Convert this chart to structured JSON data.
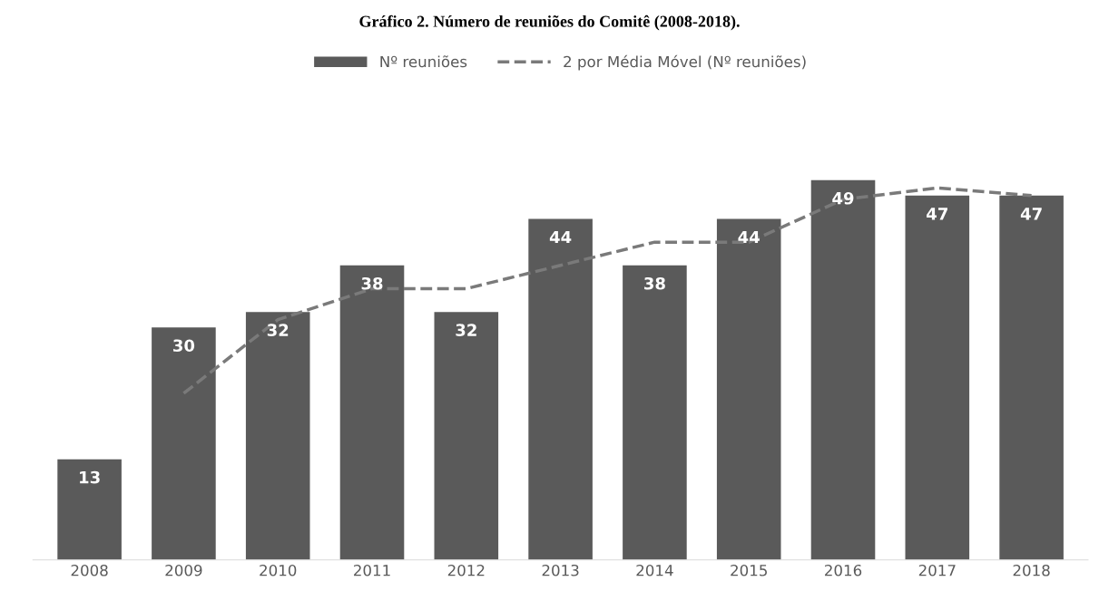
{
  "chart_data": {
    "type": "bar",
    "title": "Gráfico 2. Número de reuniões do Comitê (2008-2018).",
    "categories": [
      "2008",
      "2009",
      "2010",
      "2011",
      "2012",
      "2013",
      "2014",
      "2015",
      "2016",
      "2017",
      "2018"
    ],
    "series": [
      {
        "name": "Nº reuniões",
        "color": "#5a5a5a",
        "values": [
          13,
          30,
          32,
          38,
          32,
          44,
          38,
          44,
          49,
          47,
          47
        ],
        "value_labels": [
          "13",
          "30",
          "32",
          "38",
          "32",
          "44",
          "38",
          "44",
          "49",
          "47",
          "47"
        ]
      },
      {
        "name": "2 por Média Móvel (Nº reuniões)",
        "type": "line",
        "line_style": "dashed",
        "color": "#7a7a7a",
        "values": [
          null,
          21.5,
          31,
          35,
          35,
          38,
          41,
          41,
          46.5,
          48,
          47
        ]
      }
    ],
    "legend": "top",
    "grid": false,
    "tick_labels": "x"
  }
}
